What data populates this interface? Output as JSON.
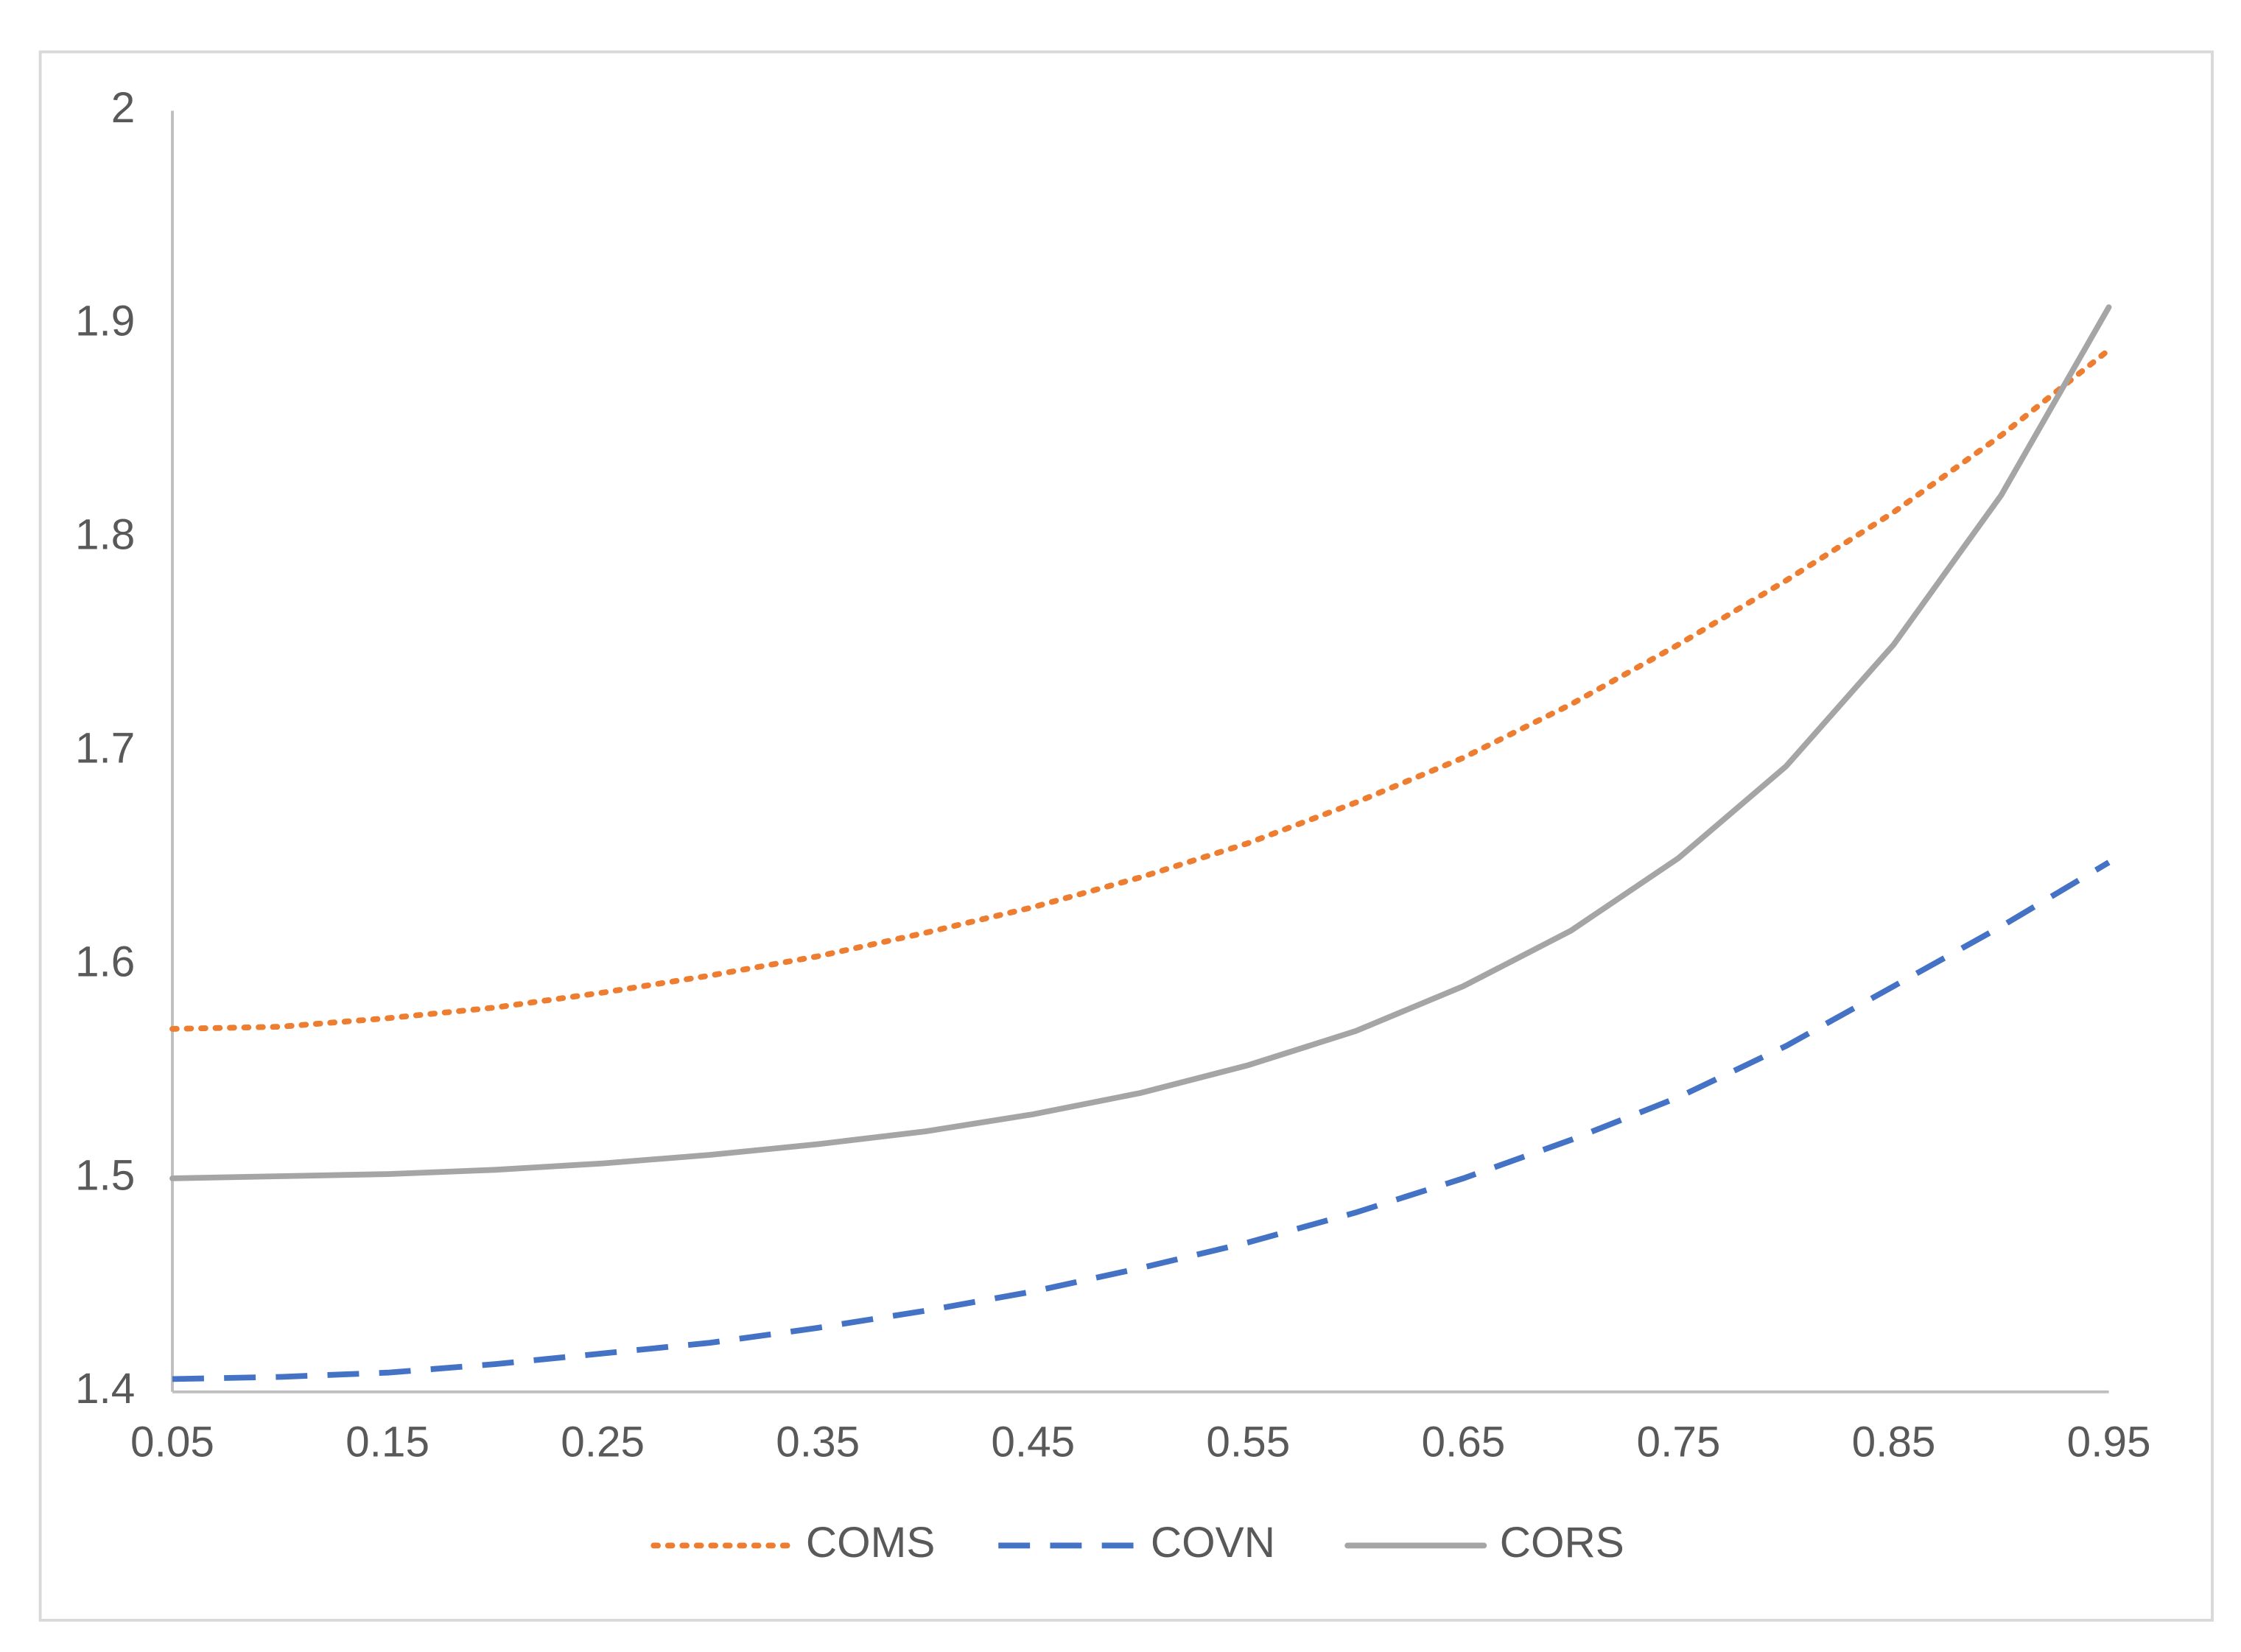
{
  "chart_data": {
    "type": "line",
    "x": [
      0.05,
      0.1,
      0.15,
      0.2,
      0.25,
      0.3,
      0.35,
      0.4,
      0.45,
      0.5,
      0.55,
      0.6,
      0.65,
      0.7,
      0.75,
      0.8,
      0.85,
      0.9,
      0.95
    ],
    "series": [
      {
        "name": "COMS",
        "color": "#ed7d31",
        "line_style": "dotted",
        "values": [
          1.57,
          1.571,
          1.575,
          1.58,
          1.587,
          1.595,
          1.604,
          1.615,
          1.627,
          1.641,
          1.657,
          1.676,
          1.697,
          1.722,
          1.75,
          1.78,
          1.812,
          1.848,
          1.888
        ]
      },
      {
        "name": "COVN",
        "color": "#4472c4",
        "line_style": "dashed",
        "values": [
          1.406,
          1.407,
          1.409,
          1.413,
          1.418,
          1.423,
          1.43,
          1.438,
          1.447,
          1.458,
          1.47,
          1.484,
          1.5,
          1.518,
          1.538,
          1.562,
          1.59,
          1.618,
          1.648
        ]
      },
      {
        "name": "CORS",
        "color": "#a5a5a5",
        "line_style": "solid",
        "values": [
          1.5,
          1.501,
          1.502,
          1.504,
          1.507,
          1.511,
          1.516,
          1.522,
          1.53,
          1.54,
          1.553,
          1.569,
          1.59,
          1.616,
          1.65,
          1.693,
          1.75,
          1.82,
          1.908
        ]
      }
    ],
    "xlim": [
      0.05,
      0.95
    ],
    "xticks": [
      0.05,
      0.15,
      0.25,
      0.35,
      0.45,
      0.55,
      0.65,
      0.75,
      0.85,
      0.95
    ],
    "ylim": [
      1.4,
      2
    ],
    "yticks": [
      1.4,
      1.5,
      1.6,
      1.7,
      1.8,
      1.9,
      2
    ],
    "grid": false,
    "legend": "bottom"
  }
}
